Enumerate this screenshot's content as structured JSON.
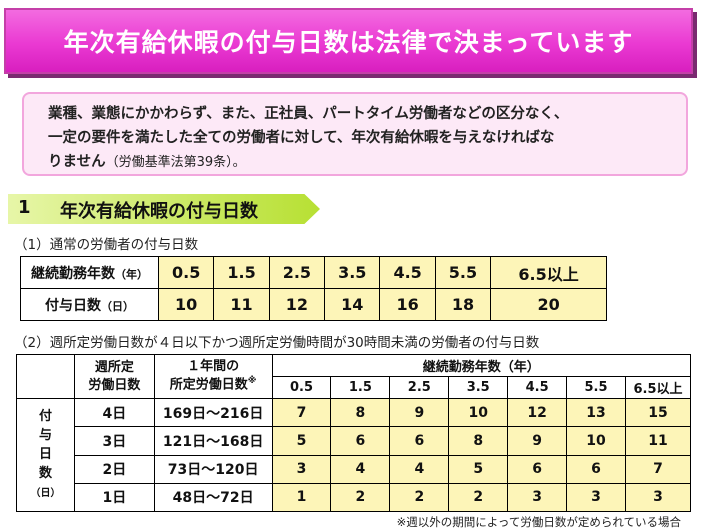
{
  "banner": {
    "title": "年次有給休暇の付与日数は法律で決まっています"
  },
  "notice": {
    "line1": "業種、業態にかかわらず、また、正社員、パートタイム労働者などの区分なく、",
    "line2": "一定の要件を満たした全ての労働者に対して、年次有給休暇を与えなければな",
    "line3": "りません",
    "ref": "（労働基準法第39条）",
    "end": "。"
  },
  "section": {
    "number": "1",
    "title": "年次有給休暇の付与日数"
  },
  "table1": {
    "caption": "（1）通常の労働者の付与日数",
    "row1_header": "継続勤務年数",
    "row1_unit": "（年）",
    "years": [
      "0.5",
      "1.5",
      "2.5",
      "3.5",
      "4.5",
      "5.5",
      "6.5以上"
    ],
    "row2_header": "付与日数",
    "row2_unit": "（日）",
    "days": [
      "10",
      "11",
      "12",
      "14",
      "16",
      "18",
      "20"
    ]
  },
  "table2": {
    "caption": "（2）週所定労働日数が４日以下かつ週所定労働時間が30時間未満の労働者の付与日数",
    "header_weekly": "週所定\n労働日数",
    "header_annual": "１年間の\n所定労働日数",
    "header_annual_mark": "※",
    "header_years": "継続勤務年数（年）",
    "years": [
      "0.5",
      "1.5",
      "2.5",
      "3.5",
      "4.5",
      "5.5",
      "6.5以上"
    ],
    "side_label": [
      "付",
      "与",
      "日",
      "数"
    ],
    "side_unit": "（日）",
    "rows": [
      {
        "weekly": "4日",
        "annual": "169日～216日",
        "values": [
          "7",
          "8",
          "9",
          "10",
          "12",
          "13",
          "15"
        ]
      },
      {
        "weekly": "3日",
        "annual": "121日～168日",
        "values": [
          "5",
          "6",
          "6",
          "8",
          "9",
          "10",
          "11"
        ]
      },
      {
        "weekly": "2日",
        "annual": "73日～120日",
        "values": [
          "3",
          "4",
          "4",
          "5",
          "6",
          "6",
          "7"
        ]
      },
      {
        "weekly": "1日",
        "annual": "48日～72日",
        "values": [
          "1",
          "2",
          "2",
          "2",
          "3",
          "3",
          "3"
        ]
      }
    ],
    "footnote": "※週以外の期間によって労働日数が定められている場合"
  }
}
